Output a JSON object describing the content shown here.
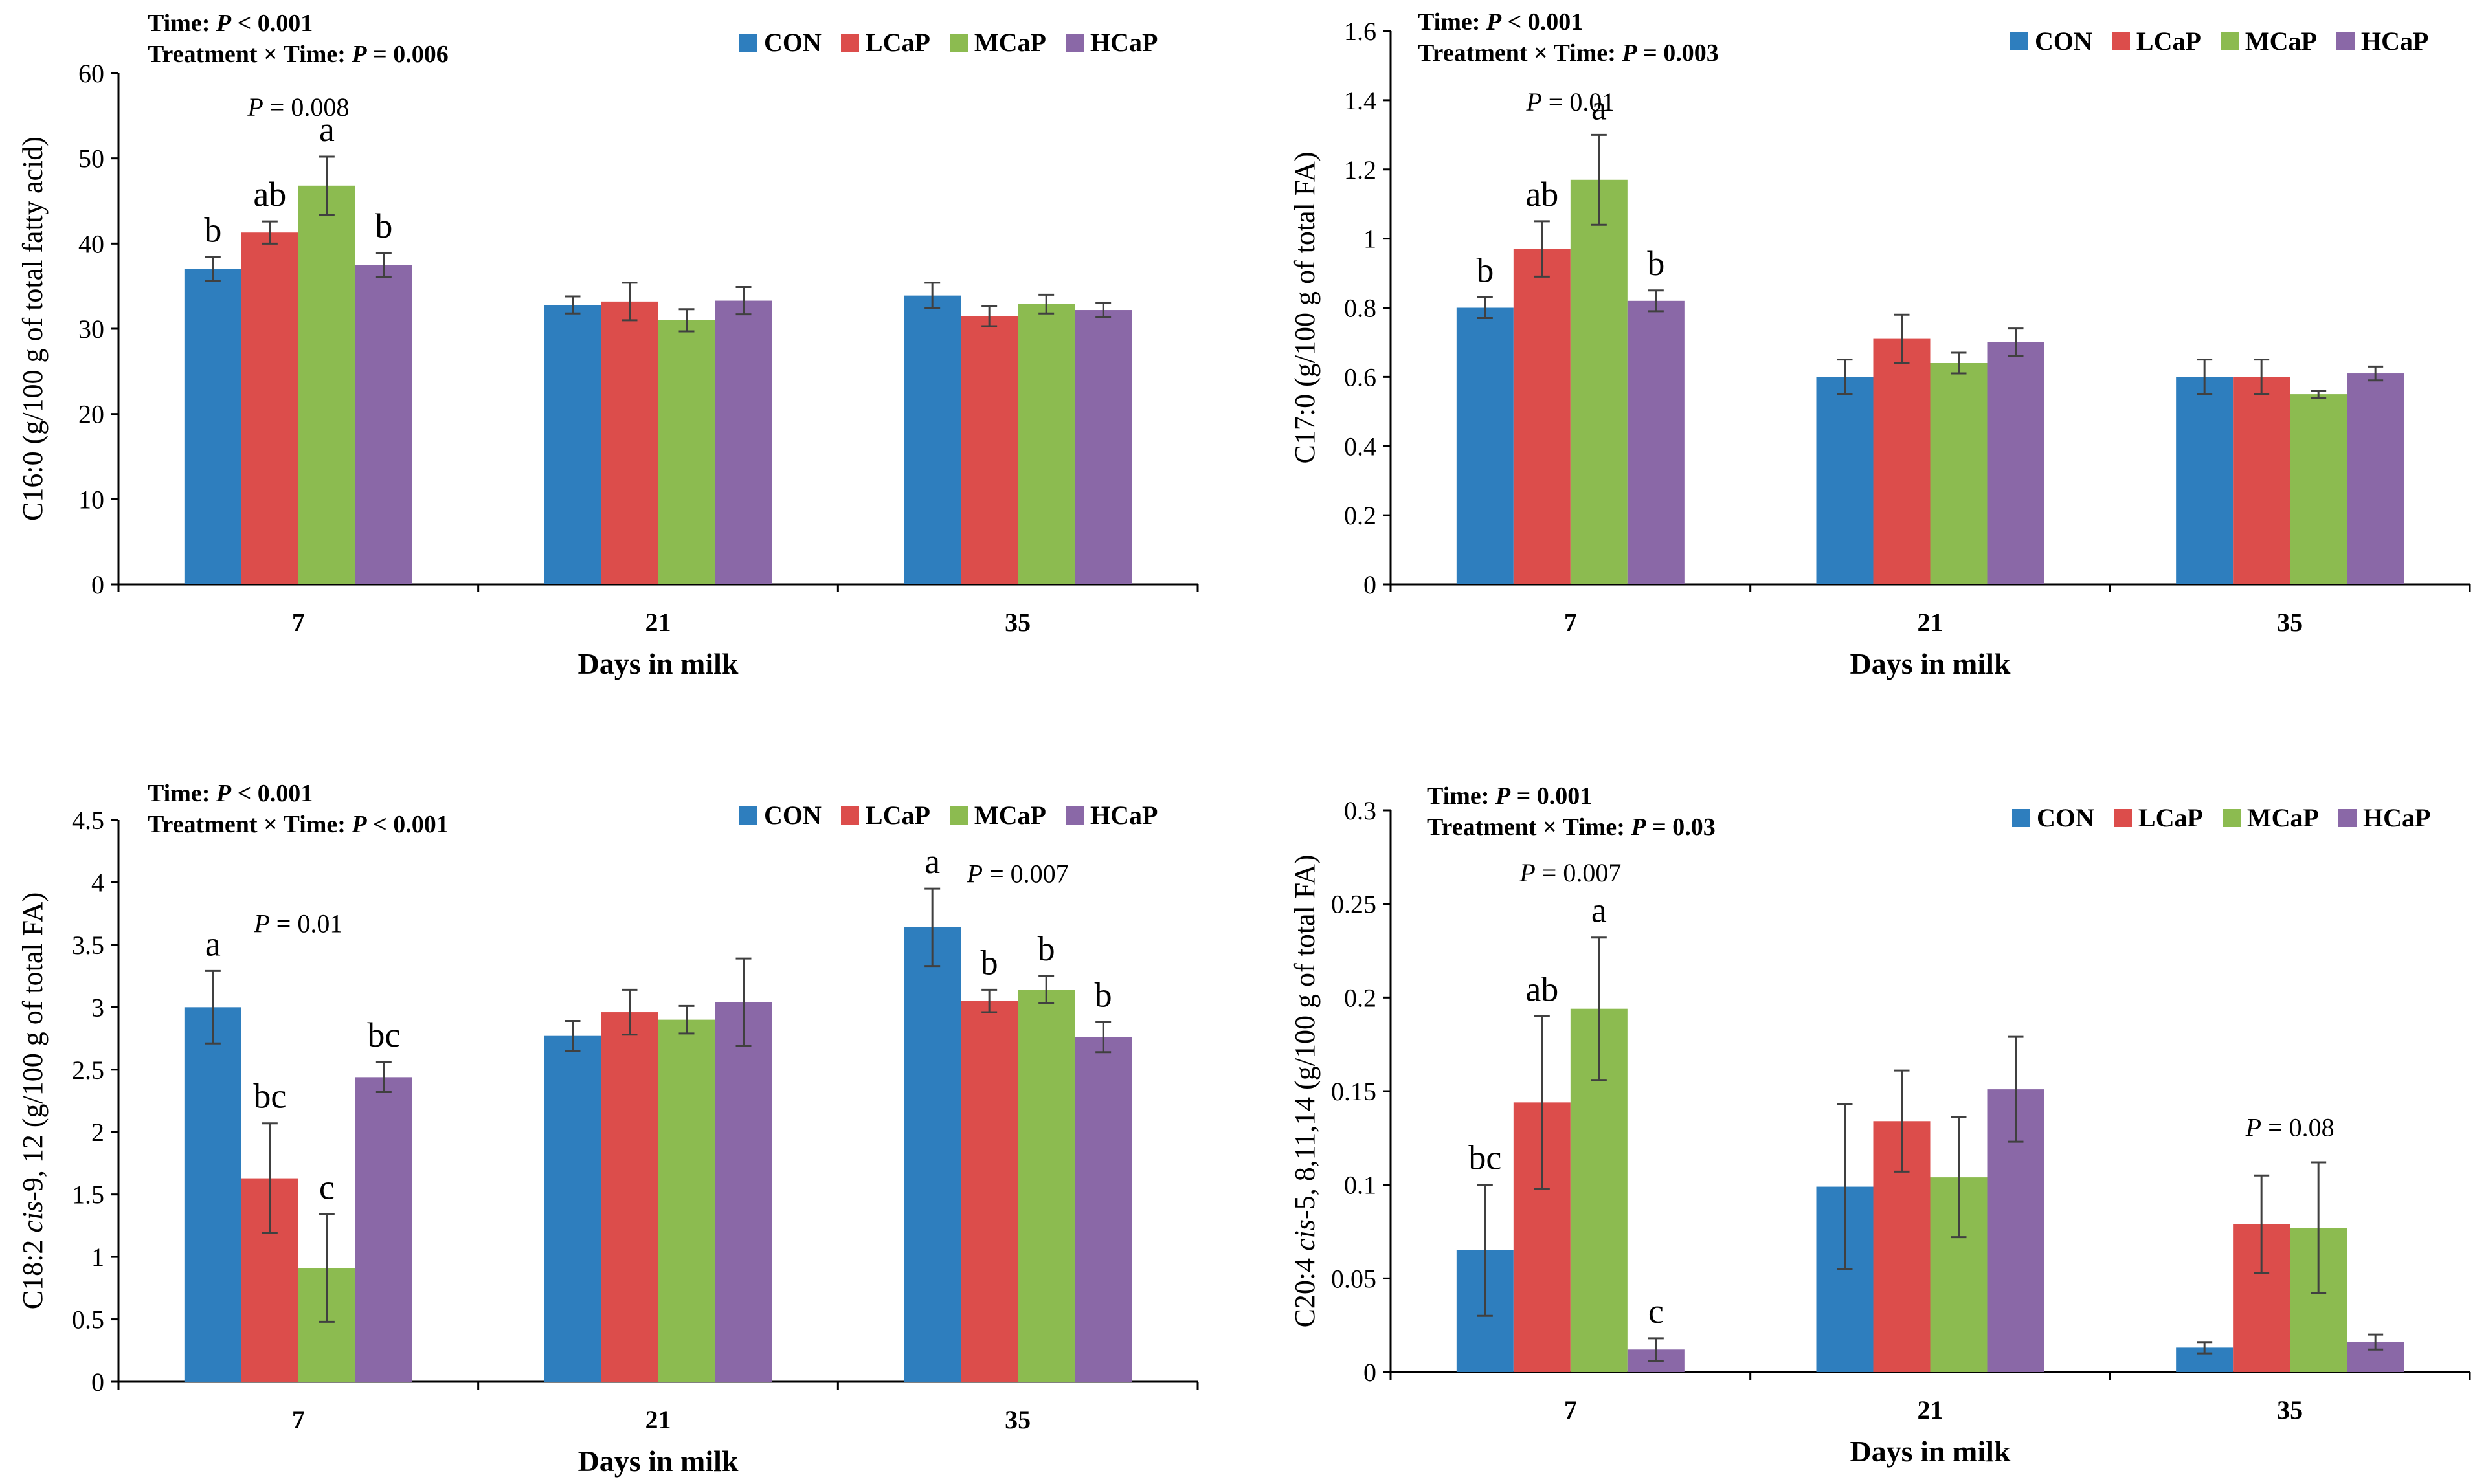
{
  "chart_data": [
    {
      "type": "bar",
      "title": "",
      "xlabel": "Days in milk",
      "ylabel": "C16:0 (g/100 g of total fatty acid)",
      "categories": [
        "7",
        "21",
        "35"
      ],
      "ylim": [
        0,
        60
      ],
      "yticks": [
        0,
        10,
        20,
        30,
        40,
        50,
        60
      ],
      "ytick_labels": [
        "0",
        "10",
        "20",
        "30",
        "40",
        "50",
        "60"
      ],
      "series": [
        {
          "name": "CON",
          "color": "#2e7ebe",
          "values": [
            37.0,
            32.8,
            33.9
          ],
          "errors": [
            1.4,
            1.0,
            1.5
          ]
        },
        {
          "name": "LCaP",
          "color": "#dc4d4b",
          "values": [
            41.3,
            33.2,
            31.5
          ],
          "errors": [
            1.3,
            2.2,
            1.2
          ]
        },
        {
          "name": "MCaP",
          "color": "#8cbb50",
          "values": [
            46.8,
            31.0,
            32.9
          ],
          "errors": [
            3.4,
            1.3,
            1.1
          ]
        },
        {
          "name": "HCaP",
          "color": "#8a68a7",
          "values": [
            37.5,
            33.3,
            32.2
          ],
          "errors": [
            1.4,
            1.6,
            0.8
          ]
        }
      ],
      "stats_line1": {
        "prefix": "Time: ",
        "p_label": "P",
        "value": " < 0.001"
      },
      "stats_line2": {
        "prefix": "Treatment × Time: ",
        "p_label": "P",
        "value": " = 0.006"
      },
      "p_annotations": [
        {
          "category": 0,
          "p_label": "P",
          "value": " = 0.008",
          "y": 55
        }
      ],
      "letter_annotations": [
        {
          "category": 0,
          "series": 0,
          "text": "b"
        },
        {
          "category": 0,
          "series": 1,
          "text": "ab"
        },
        {
          "category": 0,
          "series": 2,
          "text": "a"
        },
        {
          "category": 0,
          "series": 3,
          "text": "b"
        }
      ]
    },
    {
      "type": "bar",
      "title": "",
      "xlabel": "Days in milk",
      "ylabel": "C17:0 (g/100 g of total FA)",
      "categories": [
        "7",
        "21",
        "35"
      ],
      "ylim": [
        0,
        1.6
      ],
      "yticks": [
        0,
        0.2,
        0.4,
        0.6,
        0.8,
        1.0,
        1.2,
        1.4,
        1.6
      ],
      "ytick_labels": [
        "0",
        "0.2",
        "0.4",
        "0.6",
        "0.8",
        "1",
        "1.2",
        "1.4",
        "1.6"
      ],
      "series": [
        {
          "name": "CON",
          "color": "#2e7ebe",
          "values": [
            0.8,
            0.6,
            0.6
          ],
          "errors": [
            0.03,
            0.05,
            0.05
          ]
        },
        {
          "name": "LCaP",
          "color": "#dc4d4b",
          "values": [
            0.97,
            0.71,
            0.6
          ],
          "errors": [
            0.08,
            0.07,
            0.05
          ]
        },
        {
          "name": "MCaP",
          "color": "#8cbb50",
          "values": [
            1.17,
            0.64,
            0.55
          ],
          "errors": [
            0.13,
            0.03,
            0.01
          ]
        },
        {
          "name": "HCaP",
          "color": "#8a68a7",
          "values": [
            0.82,
            0.7,
            0.61
          ],
          "errors": [
            0.03,
            0.04,
            0.02
          ]
        }
      ],
      "stats_line1": {
        "prefix": "Time: ",
        "p_label": "P",
        "value": " < 0.001"
      },
      "stats_line2": {
        "prefix": "Treatment × Time: ",
        "p_label": "P",
        "value": " = 0.003"
      },
      "p_annotations": [
        {
          "category": 0,
          "p_label": "P",
          "value": " = 0.01",
          "y": 1.37
        }
      ],
      "letter_annotations": [
        {
          "category": 0,
          "series": 0,
          "text": "b"
        },
        {
          "category": 0,
          "series": 1,
          "text": "ab"
        },
        {
          "category": 0,
          "series": 2,
          "text": "a"
        },
        {
          "category": 0,
          "series": 3,
          "text": "b"
        }
      ]
    },
    {
      "type": "bar",
      "title": "",
      "xlabel": "Days in milk",
      "ylabel": "C18:2 cis-9, 12 (g/100 g of total FA)",
      "ylabel_parts": [
        {
          "text": "C18:2 ",
          "italic": false
        },
        {
          "text": "cis",
          "italic": true
        },
        {
          "text": "-9, 12 (g/100 g of total FA)",
          "italic": false
        }
      ],
      "categories": [
        "7",
        "21",
        "35"
      ],
      "ylim": [
        0,
        4.5
      ],
      "yticks": [
        0,
        0.5,
        1.0,
        1.5,
        2.0,
        2.5,
        3.0,
        3.5,
        4.0,
        4.5
      ],
      "ytick_labels": [
        "0",
        "0.5",
        "1",
        "1.5",
        "2",
        "2.5",
        "3",
        "3.5",
        "4",
        "4.5"
      ],
      "series": [
        {
          "name": "CON",
          "color": "#2e7ebe",
          "values": [
            3.0,
            2.77,
            3.64
          ],
          "errors": [
            0.29,
            0.12,
            0.31
          ]
        },
        {
          "name": "LCaP",
          "color": "#dc4d4b",
          "values": [
            1.63,
            2.96,
            3.05
          ],
          "errors": [
            0.44,
            0.18,
            0.09
          ]
        },
        {
          "name": "MCaP",
          "color": "#8cbb50",
          "values": [
            0.91,
            2.9,
            3.14
          ],
          "errors": [
            0.43,
            0.11,
            0.11
          ]
        },
        {
          "name": "HCaP",
          "color": "#8a68a7",
          "values": [
            2.44,
            3.04,
            2.76
          ],
          "errors": [
            0.12,
            0.35,
            0.12
          ]
        }
      ],
      "stats_line1": {
        "prefix": "Time: ",
        "p_label": "P",
        "value": " < 0.001"
      },
      "stats_line2": {
        "prefix": "Treatment × Time: ",
        "p_label": "P",
        "value": " < 0.001"
      },
      "p_annotations": [
        {
          "category": 0,
          "p_label": "P",
          "value": " = 0.01",
          "y": 3.6
        },
        {
          "category": 2,
          "p_label": "P",
          "value": " = 0.007",
          "y": 4.0
        }
      ],
      "letter_annotations": [
        {
          "category": 0,
          "series": 0,
          "text": "a"
        },
        {
          "category": 0,
          "series": 1,
          "text": "bc"
        },
        {
          "category": 0,
          "series": 2,
          "text": "c"
        },
        {
          "category": 0,
          "series": 3,
          "text": "bc"
        },
        {
          "category": 2,
          "series": 0,
          "text": "a"
        },
        {
          "category": 2,
          "series": 1,
          "text": "b"
        },
        {
          "category": 2,
          "series": 2,
          "text": "b"
        },
        {
          "category": 2,
          "series": 3,
          "text": "b"
        }
      ]
    },
    {
      "type": "bar",
      "title": "",
      "xlabel": "Days in milk",
      "ylabel": "C20:4 cis-5, 8,11,14 (g/100 g of total FA)",
      "ylabel_parts": [
        {
          "text": "C20:4 ",
          "italic": false
        },
        {
          "text": "cis",
          "italic": true
        },
        {
          "text": "-5, 8,11,14 (g/100 g of total FA)",
          "italic": false
        }
      ],
      "categories": [
        "7",
        "21",
        "35"
      ],
      "ylim": [
        0,
        0.3
      ],
      "yticks": [
        0,
        0.05,
        0.1,
        0.15,
        0.2,
        0.25,
        0.3
      ],
      "ytick_labels": [
        "0",
        "0.05",
        "0.1",
        "0.15",
        "0.2",
        "0.25",
        "0.3"
      ],
      "series": [
        {
          "name": "CON",
          "color": "#2e7ebe",
          "values": [
            0.065,
            0.099,
            0.013
          ],
          "errors": [
            0.035,
            0.044,
            0.003
          ]
        },
        {
          "name": "LCaP",
          "color": "#dc4d4b",
          "values": [
            0.144,
            0.134,
            0.079
          ],
          "errors": [
            0.046,
            0.027,
            0.026
          ]
        },
        {
          "name": "MCaP",
          "color": "#8cbb50",
          "values": [
            0.194,
            0.104,
            0.077
          ],
          "errors": [
            0.038,
            0.032,
            0.035
          ]
        },
        {
          "name": "HCaP",
          "color": "#8a68a7",
          "values": [
            0.012,
            0.151,
            0.016
          ],
          "errors": [
            0.006,
            0.028,
            0.004
          ]
        }
      ],
      "stats_line1": {
        "prefix": "Time: ",
        "p_label": "P",
        "value": " = 0.001"
      },
      "stats_line2": {
        "prefix": "Treatment × Time: ",
        "p_label": "P",
        "value": " = 0.03"
      },
      "p_annotations": [
        {
          "category": 0,
          "p_label": "P",
          "value": " = 0.007",
          "y": 0.262
        },
        {
          "category": 2,
          "p_label": "P",
          "value": " = 0.08",
          "y": 0.126
        }
      ],
      "letter_annotations": [
        {
          "category": 0,
          "series": 0,
          "text": "bc"
        },
        {
          "category": 0,
          "series": 1,
          "text": "ab"
        },
        {
          "category": 0,
          "series": 2,
          "text": "a"
        },
        {
          "category": 0,
          "series": 3,
          "text": "c"
        }
      ]
    }
  ]
}
